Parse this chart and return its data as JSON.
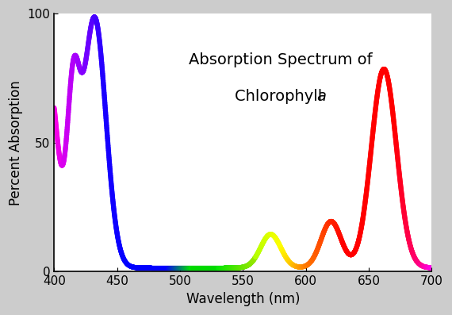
{
  "title_line1": "Absorption Spectrum of",
  "title_line2": "Chlorophyll ",
  "title_italic": "a",
  "xlabel": "Wavelength (nm)",
  "ylabel": "Percent Absorption",
  "xlim": [
    400,
    700
  ],
  "ylim": [
    0,
    100
  ],
  "xticks": [
    400,
    450,
    500,
    550,
    600,
    650,
    700
  ],
  "yticks": [
    0,
    50,
    100
  ],
  "background_color": "#cccccc",
  "plot_bg_color": "#ffffff",
  "linewidth": 4.5,
  "title_fontsize": 14,
  "axis_label_fontsize": 12,
  "tick_fontsize": 11
}
